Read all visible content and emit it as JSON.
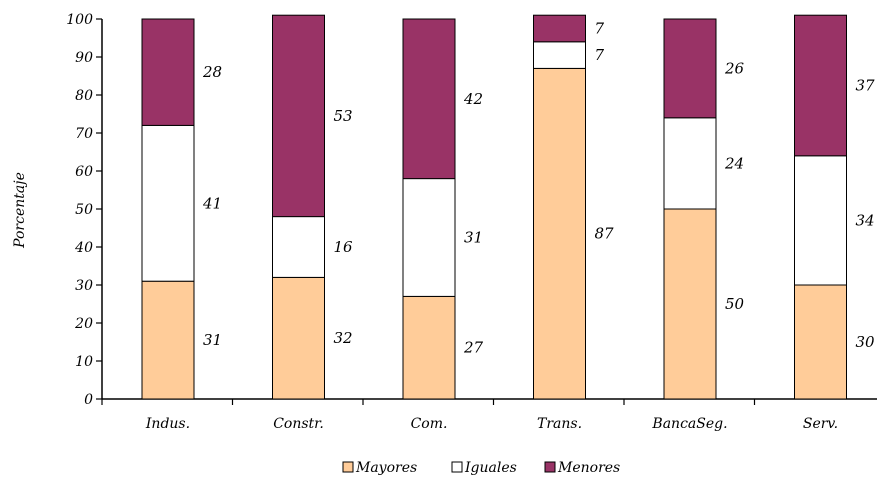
{
  "chart_data": {
    "type": "bar",
    "stacked": true,
    "title": "",
    "xlabel": "",
    "ylabel": "Porcentaje",
    "ylim": [
      0,
      100
    ],
    "yticks": [
      0,
      10,
      20,
      30,
      40,
      50,
      60,
      70,
      80,
      90,
      100
    ],
    "categories": [
      "Indus.",
      "Constr.",
      "Com.",
      "Trans.",
      "BancaSeg.",
      "Serv."
    ],
    "series": [
      {
        "name": "Mayores",
        "color": "#FFCC99",
        "values": [
          31,
          32,
          27,
          87,
          50,
          30
        ]
      },
      {
        "name": "Iguales",
        "color": "#FFFFFF",
        "values": [
          41,
          16,
          31,
          7,
          24,
          34
        ]
      },
      {
        "name": "Menores",
        "color": "#993366",
        "values": [
          28,
          53,
          42,
          7,
          26,
          37
        ]
      }
    ],
    "grid": false,
    "legend_position": "bottom"
  }
}
